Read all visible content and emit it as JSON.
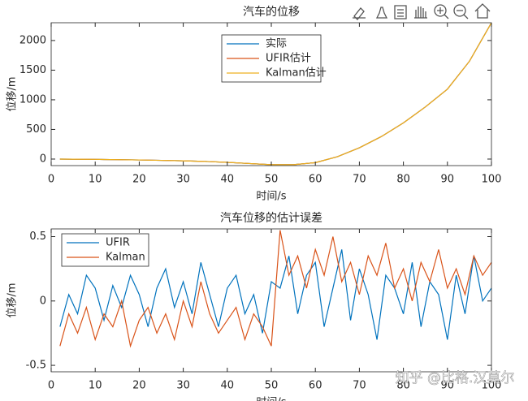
{
  "chart_data": [
    {
      "type": "line",
      "title": "汽车的位移",
      "x_label": "时间/s",
      "y_label": "位移/m",
      "x": [
        2,
        5,
        10,
        15,
        20,
        25,
        30,
        35,
        40,
        45,
        50,
        55,
        60,
        65,
        70,
        75,
        80,
        85,
        90,
        95,
        100
      ],
      "series": [
        {
          "name": "实际",
          "color": "#0072bd",
          "values": [
            0,
            -2,
            -5,
            -10,
            -15,
            -22,
            -30,
            -40,
            -55,
            -75,
            -95,
            -95,
            -60,
            40,
            190,
            380,
            610,
            880,
            1180,
            1650,
            2300
          ]
        },
        {
          "name": "UFIR估计",
          "color": "#d95319",
          "values": [
            0,
            -2,
            -5,
            -10,
            -15,
            -22,
            -30,
            -40,
            -55,
            -75,
            -95,
            -95,
            -60,
            40,
            190,
            380,
            610,
            880,
            1180,
            1650,
            2300
          ]
        },
        {
          "name": "Kalman估计",
          "color": "#edb120",
          "values": [
            0,
            -2,
            -5,
            -10,
            -15,
            -22,
            -30,
            -40,
            -55,
            -75,
            -95,
            -95,
            -60,
            40,
            190,
            380,
            610,
            880,
            1180,
            1650,
            2300
          ]
        }
      ],
      "xlim": [
        0,
        100
      ],
      "xticks": [
        0,
        10,
        20,
        30,
        40,
        50,
        60,
        70,
        80,
        90,
        100
      ],
      "ylim": [
        -110,
        2300
      ],
      "yticks": [
        0,
        500,
        1000,
        1500,
        2000
      ],
      "legend": "north"
    },
    {
      "type": "line",
      "title": "汽车位移的估计误差",
      "x_label": "时间/s",
      "y_label": "位移/m",
      "x": [
        2,
        4,
        6,
        8,
        10,
        12,
        14,
        16,
        18,
        20,
        22,
        24,
        26,
        28,
        30,
        32,
        34,
        36,
        38,
        40,
        42,
        44,
        46,
        48,
        50,
        52,
        54,
        56,
        58,
        60,
        62,
        64,
        66,
        68,
        70,
        72,
        74,
        76,
        78,
        80,
        82,
        84,
        86,
        88,
        90,
        92,
        94,
        96,
        98,
        100
      ],
      "series": [
        {
          "name": "UFIR",
          "color": "#0072bd",
          "values": [
            -0.2,
            0.05,
            -0.1,
            0.2,
            0.1,
            -0.15,
            0.12,
            -0.05,
            0.2,
            0.05,
            -0.2,
            0.1,
            0.25,
            -0.05,
            0.15,
            -0.1,
            0.3,
            0.05,
            -0.2,
            0.1,
            0.2,
            -0.1,
            0.05,
            -0.25,
            0.15,
            0.1,
            0.35,
            -0.1,
            0.2,
            0.3,
            -0.2,
            0.1,
            0.4,
            -0.15,
            0.25,
            0.05,
            -0.3,
            0.2,
            0.1,
            -0.1,
            0.3,
            -0.2,
            0.15,
            0.05,
            -0.3,
            0.2,
            -0.1,
            0.35,
            0.0,
            0.1
          ]
        },
        {
          "name": "Kalman",
          "color": "#d95319",
          "values": [
            -0.35,
            -0.1,
            -0.25,
            -0.05,
            -0.3,
            -0.1,
            -0.2,
            0.0,
            -0.35,
            -0.15,
            -0.05,
            -0.25,
            -0.1,
            -0.3,
            0.0,
            -0.2,
            0.15,
            -0.1,
            -0.25,
            -0.15,
            -0.05,
            -0.3,
            -0.1,
            -0.2,
            -0.35,
            0.55,
            0.2,
            0.35,
            0.1,
            0.4,
            0.2,
            0.5,
            0.15,
            0.3,
            0.05,
            0.35,
            0.2,
            0.45,
            0.1,
            0.25,
            0.0,
            0.3,
            0.15,
            0.4,
            0.1,
            0.25,
            0.05,
            0.35,
            0.2,
            0.3
          ]
        }
      ],
      "xlim": [
        0,
        100
      ],
      "xticks": [
        0,
        10,
        20,
        30,
        40,
        50,
        60,
        70,
        80,
        90,
        100
      ],
      "ylim": [
        -0.55,
        0.56
      ],
      "yticks": [
        -0.5,
        0,
        0.5
      ],
      "legend": "northwest"
    }
  ],
  "watermark": "知乎 @比格.汉莫尔"
}
